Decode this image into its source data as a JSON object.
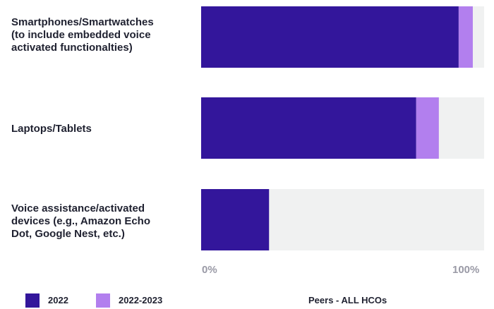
{
  "chart_data": {
    "type": "bar",
    "orientation": "horizontal",
    "stacked": true,
    "categories": [
      "Smartphones/Smartwatches\n(to include embedded voice\nactivated functionalties)",
      "Laptops/Tablets",
      "Voice assistance/activated\ndevices (e.g., Amazon Echo\nDot, Google Nest, etc.)"
    ],
    "series": [
      {
        "name": "2022",
        "values": [
          91,
          76,
          24
        ],
        "color": "#33169b"
      },
      {
        "name": "2022-2023",
        "values": [
          5,
          8,
          0
        ],
        "color": "#b27fee"
      }
    ],
    "background_bar_color": "#f0f1f1",
    "xlim": [
      0,
      100
    ],
    "x_ticks": [
      "0%",
      "100%"
    ],
    "footer_label": "Peers - ALL HCOs",
    "legend_position": "bottom-left",
    "grid": false
  }
}
